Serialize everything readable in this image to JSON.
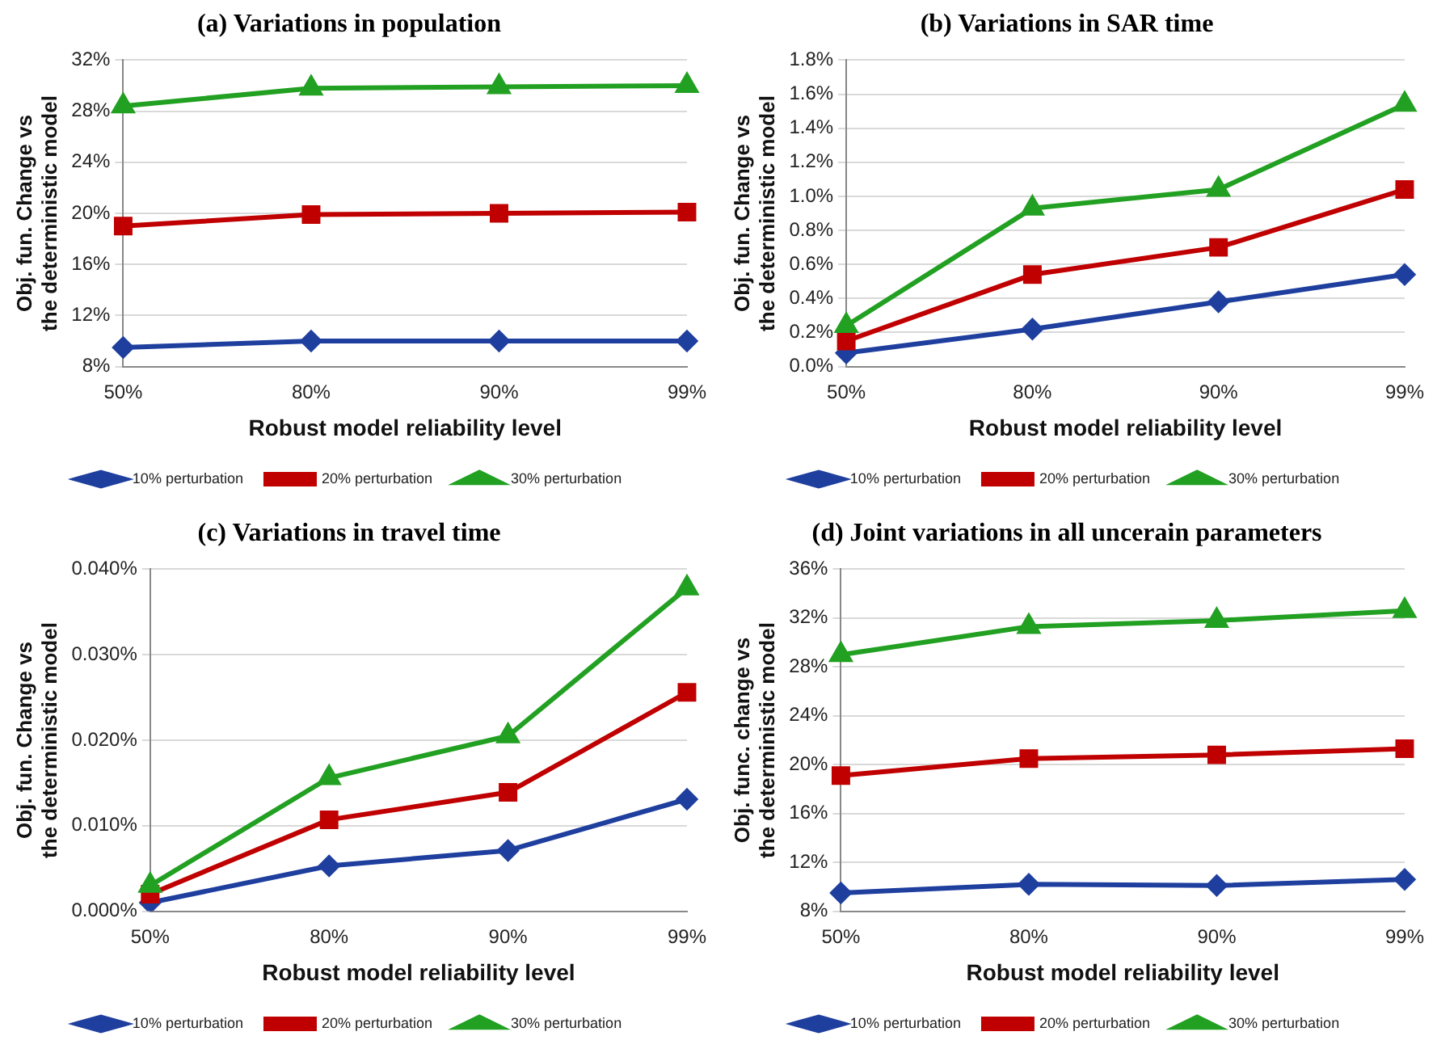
{
  "chart_data": [
    {
      "type": "line",
      "title": "(a) Variations in population",
      "xlabel": "Robust model reliability level",
      "ylabel": "Obj. fun. Change vs the deterministic model",
      "categories": [
        "50%",
        "80%",
        "90%",
        "99%"
      ],
      "series": [
        {
          "name": "10% perturbation",
          "color": "#1f3f9f",
          "marker": "diamond",
          "values": [
            9.5,
            10,
            10,
            10
          ]
        },
        {
          "name": "20% perturbation",
          "color": "#c00000",
          "marker": "square",
          "values": [
            19,
            19.9,
            20,
            20.1
          ]
        },
        {
          "name": "30% perturbation",
          "color": "#22a022",
          "marker": "triangle",
          "values": [
            28.4,
            29.8,
            29.9,
            30
          ]
        }
      ],
      "ylim": [
        8,
        32
      ],
      "yticks": [
        {
          "value": 8,
          "label": "8%"
        },
        {
          "value": 12,
          "label": "12%"
        },
        {
          "value": 16,
          "label": "16%"
        },
        {
          "value": 20,
          "label": "20%"
        },
        {
          "value": 24,
          "label": "24%"
        },
        {
          "value": 28,
          "label": "28%"
        },
        {
          "value": 32,
          "label": "32%"
        }
      ],
      "grid": "y",
      "legend": "bottom"
    },
    {
      "type": "line",
      "title": "(b) Variations in SAR time",
      "xlabel": "Robust model reliability level",
      "ylabel": "Obj. fun. Change vs the deterministic model",
      "categories": [
        "50%",
        "80%",
        "90%",
        "99%"
      ],
      "series": [
        {
          "name": "10% perturbation",
          "color": "#1f3f9f",
          "marker": "diamond",
          "values": [
            0.08,
            0.22,
            0.38,
            0.54
          ]
        },
        {
          "name": "20% perturbation",
          "color": "#c00000",
          "marker": "square",
          "values": [
            0.15,
            0.54,
            0.7,
            1.04
          ]
        },
        {
          "name": "30% perturbation",
          "color": "#22a022",
          "marker": "triangle",
          "values": [
            0.24,
            0.93,
            1.04,
            1.54
          ]
        }
      ],
      "ylim": [
        0,
        1.8
      ],
      "yticks": [
        {
          "value": 0,
          "label": "0.0%"
        },
        {
          "value": 0.2,
          "label": "0.2%"
        },
        {
          "value": 0.4,
          "label": "0.4%"
        },
        {
          "value": 0.6,
          "label": "0.6%"
        },
        {
          "value": 0.8,
          "label": "0.8%"
        },
        {
          "value": 1.0,
          "label": "1.0%"
        },
        {
          "value": 1.2,
          "label": "1.2%"
        },
        {
          "value": 1.4,
          "label": "1.4%"
        },
        {
          "value": 1.6,
          "label": "1.6%"
        },
        {
          "value": 1.8,
          "label": "1.8%"
        }
      ],
      "grid": "y",
      "legend": "bottom"
    },
    {
      "type": "line",
      "title": "(c) Variations in travel time",
      "xlabel": "Robust model reliability level",
      "ylabel": "Obj. fun. Change vs the deterministic model",
      "categories": [
        "50%",
        "80%",
        "90%",
        "99%"
      ],
      "series": [
        {
          "name": "10% perturbation",
          "color": "#1f3f9f",
          "marker": "diamond",
          "values": [
            0.001,
            0.0053,
            0.0071,
            0.0131
          ]
        },
        {
          "name": "20% perturbation",
          "color": "#c00000",
          "marker": "square",
          "values": [
            0.002,
            0.0107,
            0.0139,
            0.0256
          ]
        },
        {
          "name": "30% perturbation",
          "color": "#22a022",
          "marker": "triangle",
          "values": [
            0.003,
            0.0156,
            0.0205,
            0.0378
          ]
        }
      ],
      "ylim": [
        0,
        0.04
      ],
      "yticks": [
        {
          "value": 0,
          "label": "0.000%"
        },
        {
          "value": 0.01,
          "label": "0.010%"
        },
        {
          "value": 0.02,
          "label": "0.020%"
        },
        {
          "value": 0.03,
          "label": "0.030%"
        },
        {
          "value": 0.04,
          "label": "0.040%"
        }
      ],
      "grid": "y",
      "legend": "bottom"
    },
    {
      "type": "line",
      "title": "(d) Joint variations in all uncerain parameters",
      "xlabel": "Robust model reliability level",
      "ylabel": "Obj. func. change vs the deterministic model",
      "categories": [
        "50%",
        "80%",
        "90%",
        "99%"
      ],
      "series": [
        {
          "name": "10% perturbation",
          "color": "#1f3f9f",
          "marker": "diamond",
          "values": [
            9.5,
            10.2,
            10.1,
            10.6
          ]
        },
        {
          "name": "20% perturbation",
          "color": "#c00000",
          "marker": "square",
          "values": [
            19.1,
            20.5,
            20.8,
            21.3
          ]
        },
        {
          "name": "30% perturbation",
          "color": "#22a022",
          "marker": "triangle",
          "values": [
            29,
            31.3,
            31.8,
            32.6
          ]
        }
      ],
      "ylim": [
        8,
        36
      ],
      "yticks": [
        {
          "value": 8,
          "label": "8%"
        },
        {
          "value": 12,
          "label": "12%"
        },
        {
          "value": 16,
          "label": "16%"
        },
        {
          "value": 20,
          "label": "20%"
        },
        {
          "value": 24,
          "label": "24%"
        },
        {
          "value": 28,
          "label": "28%"
        },
        {
          "value": 32,
          "label": "32%"
        },
        {
          "value": 36,
          "label": "36%"
        }
      ],
      "grid": "y",
      "legend": "bottom"
    }
  ]
}
